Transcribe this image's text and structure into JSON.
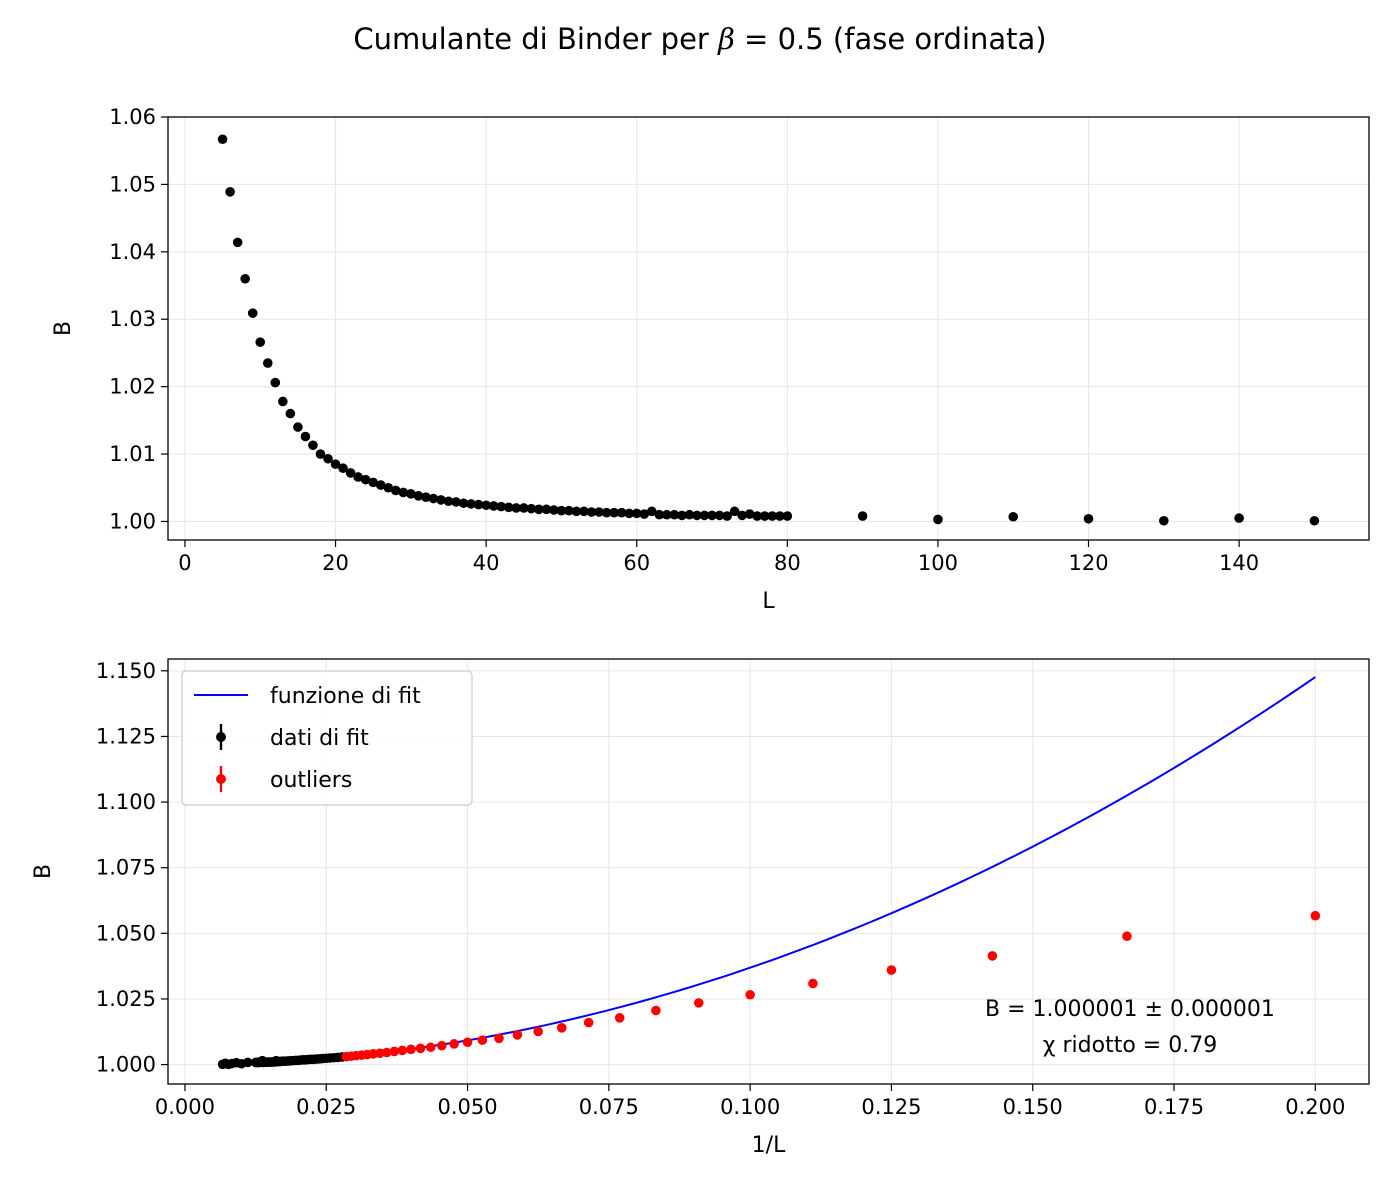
{
  "title": {
    "prefix": "Cumulante di Binder per ",
    "symbol": "β",
    "suffix": " = 0.5 (fase ordinata)"
  },
  "colors": {
    "fit_data": "#000000",
    "outliers": "#ff0000",
    "fit_line": "#0000ff",
    "grid": "#e6e6e6"
  },
  "chart_data": [
    {
      "type": "scatter",
      "xlabel": "L",
      "ylabel": "B",
      "xlim": [
        -2.25,
        157.25
      ],
      "ylim": [
        0.99725,
        1.06
      ],
      "xticks": [
        "0",
        "20",
        "40",
        "60",
        "80",
        "100",
        "120",
        "140"
      ],
      "yticks": [
        "1.00",
        "1.01",
        "1.02",
        "1.03",
        "1.04",
        "1.05",
        "1.06"
      ],
      "grid": true,
      "series": [
        {
          "color": "#000000",
          "x": [
            5,
            6,
            7,
            8,
            9,
            10,
            11,
            12,
            13,
            14,
            15,
            16,
            17,
            18,
            19,
            20,
            21,
            22,
            23,
            24,
            25,
            26,
            27,
            28,
            29,
            30,
            31,
            32,
            33,
            34,
            35,
            36,
            37,
            38,
            39,
            40,
            41,
            42,
            43,
            44,
            45,
            46,
            47,
            48,
            49,
            50,
            51,
            52,
            53,
            54,
            55,
            56,
            57,
            58,
            59,
            60,
            61,
            62,
            63,
            64,
            65,
            66,
            67,
            68,
            69,
            70,
            71,
            72,
            73,
            74,
            75,
            76,
            77,
            78,
            79,
            80,
            90,
            100,
            110,
            120,
            130,
            140,
            150
          ],
          "y": [
            1.0567,
            1.0489,
            1.0414,
            1.036,
            1.0309,
            1.0266,
            1.0235,
            1.0206,
            1.0178,
            1.016,
            1.014,
            1.0126,
            1.0113,
            1.01,
            1.0093,
            1.0085,
            1.0079,
            1.0072,
            1.0066,
            1.0062,
            1.0058,
            1.0054,
            1.005,
            1.0046,
            1.0043,
            1.0041,
            1.0038,
            1.0036,
            1.0034,
            1.0032,
            1.003,
            1.0029,
            1.0027,
            1.0026,
            1.0025,
            1.0024,
            1.0023,
            1.0022,
            1.0021,
            1.002,
            1.002,
            1.0019,
            1.0018,
            1.0018,
            1.0017,
            1.0016,
            1.0016,
            1.0015,
            1.0015,
            1.0014,
            1.0014,
            1.0013,
            1.0013,
            1.0013,
            1.0012,
            1.0012,
            1.0011,
            1.0015,
            1.001,
            1.001,
            1.001,
            1.0009,
            1.001,
            1.0009,
            1.0009,
            1.0009,
            1.0009,
            1.0008,
            1.0015,
            1.0009,
            1.0011,
            1.0008,
            1.0008,
            1.0008,
            1.0008,
            1.0008,
            1.0008,
            1.0003,
            1.0007,
            1.0004,
            1.0001,
            1.0005,
            1.0001
          ]
        }
      ]
    },
    {
      "type": "scatter",
      "xlabel": "1/L",
      "ylabel": "B",
      "xlim": [
        -0.003,
        0.2095
      ],
      "ylim": [
        0.9926,
        1.1545
      ],
      "xticks": [
        "0.000",
        "0.025",
        "0.050",
        "0.075",
        "0.100",
        "0.125",
        "0.150",
        "0.175",
        "0.200"
      ],
      "yticks": [
        "1.000",
        "1.025",
        "1.050",
        "1.075",
        "1.100",
        "1.125",
        "1.150"
      ],
      "grid": true,
      "legend": {
        "position": "upper left",
        "items": [
          {
            "label": "funzione di fit",
            "kind": "line",
            "color": "#0000ff"
          },
          {
            "label": "dati di fit",
            "kind": "errorbar",
            "color": "#000000"
          },
          {
            "label": "outliers",
            "kind": "errorbar",
            "color": "#ff0000"
          }
        ]
      },
      "fit_function": {
        "type": "line",
        "color": "#0000ff",
        "x_range": [
          0.00667,
          0.2
        ],
        "intercept": 1.000001,
        "coef_linear": 0.0,
        "coef_quadratic": 3.69
      },
      "series": [
        {
          "name": "dati di fit",
          "color": "#000000",
          "x": [
            0.00667,
            0.00714,
            0.00769,
            0.00833,
            0.00909,
            0.01,
            0.01111,
            0.0125,
            0.0127,
            0.01282,
            0.01299,
            0.01316,
            0.01333,
            0.01351,
            0.0137,
            0.01389,
            0.01408,
            0.01429,
            0.01449,
            0.01471,
            0.01493,
            0.01515,
            0.01538,
            0.01563,
            0.01587,
            0.01613,
            0.01639,
            0.01667,
            0.01695,
            0.01724,
            0.01754,
            0.01786,
            0.01818,
            0.01852,
            0.01887,
            0.01923,
            0.01961,
            0.02,
            0.02041,
            0.02083,
            0.02128,
            0.02174,
            0.02222,
            0.02273,
            0.02326,
            0.02381,
            0.02439,
            0.025,
            0.02564,
            0.02632,
            0.02703,
            0.02778
          ],
          "y": [
            1.0001,
            1.0005,
            1.0001,
            1.0004,
            1.0007,
            1.0003,
            1.0008,
            1.0008,
            1.0008,
            1.0008,
            1.0008,
            1.0008,
            1.0011,
            1.0009,
            1.0015,
            1.0008,
            1.0009,
            1.0009,
            1.0009,
            1.0009,
            1.001,
            1.0009,
            1.001,
            1.001,
            1.001,
            1.0015,
            1.0011,
            1.0012,
            1.0012,
            1.0013,
            1.0013,
            1.0013,
            1.0014,
            1.0014,
            1.0015,
            1.0015,
            1.0016,
            1.0016,
            1.0017,
            1.0018,
            1.0018,
            1.0019,
            1.002,
            1.002,
            1.0021,
            1.0022,
            1.0023,
            1.0024,
            1.0025,
            1.0026,
            1.0027,
            1.0029
          ]
        },
        {
          "name": "outliers",
          "color": "#ff0000",
          "x": [
            0.02857,
            0.02941,
            0.0303,
            0.03125,
            0.03226,
            0.03333,
            0.03448,
            0.03571,
            0.03704,
            0.03846,
            0.04,
            0.04167,
            0.04348,
            0.04545,
            0.04762,
            0.05,
            0.05263,
            0.05556,
            0.05882,
            0.0625,
            0.06667,
            0.07143,
            0.07692,
            0.08333,
            0.09091,
            0.1,
            0.11111,
            0.125,
            0.14286,
            0.16667,
            0.2
          ],
          "y": [
            1.003,
            1.0032,
            1.0034,
            1.0036,
            1.0038,
            1.0041,
            1.0043,
            1.0046,
            1.005,
            1.0054,
            1.0058,
            1.0062,
            1.0066,
            1.0072,
            1.0079,
            1.0085,
            1.0093,
            1.01,
            1.0113,
            1.0126,
            1.014,
            1.016,
            1.0178,
            1.0206,
            1.0235,
            1.0266,
            1.0309,
            1.036,
            1.0414,
            1.0489,
            1.0567
          ]
        }
      ],
      "annotations": [
        "B = 1.000001 ± 0.000001",
        "χ ridotto = 0.79"
      ]
    }
  ]
}
